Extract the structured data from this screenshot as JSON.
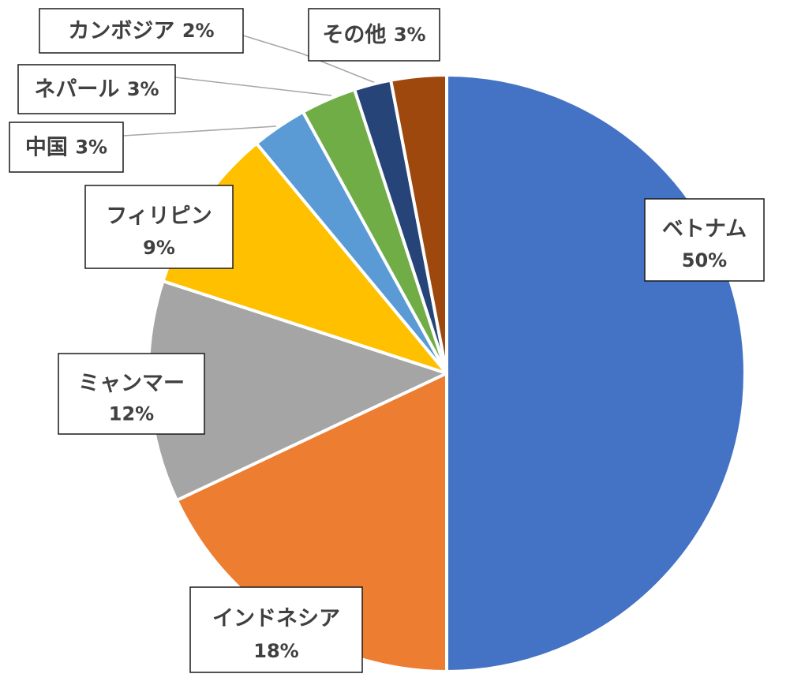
{
  "chart_data": {
    "type": "pie",
    "start_angle_deg": 0,
    "direction": "clockwise",
    "slices": [
      {
        "name": "ベトナム",
        "value": 50,
        "label": "50%",
        "color": "#4472c4"
      },
      {
        "name": "インドネシア",
        "value": 18,
        "label": "18%",
        "color": "#ed7d31"
      },
      {
        "name": "ミャンマー",
        "value": 12,
        "label": "12%",
        "color": "#a5a5a5"
      },
      {
        "name": "フィリピン",
        "value": 9,
        "label": "9%",
        "color": "#ffc000"
      },
      {
        "name": "中国",
        "value": 3,
        "label": "3%",
        "color": "#5b9bd5"
      },
      {
        "name": "ネパール",
        "value": 3,
        "label": "3%",
        "color": "#70ad47"
      },
      {
        "name": "カンボジア",
        "value": 2,
        "label": "2%",
        "color": "#264478"
      },
      {
        "name": "その他",
        "value": 3,
        "label": "3%",
        "color": "#9e480e"
      }
    ]
  }
}
